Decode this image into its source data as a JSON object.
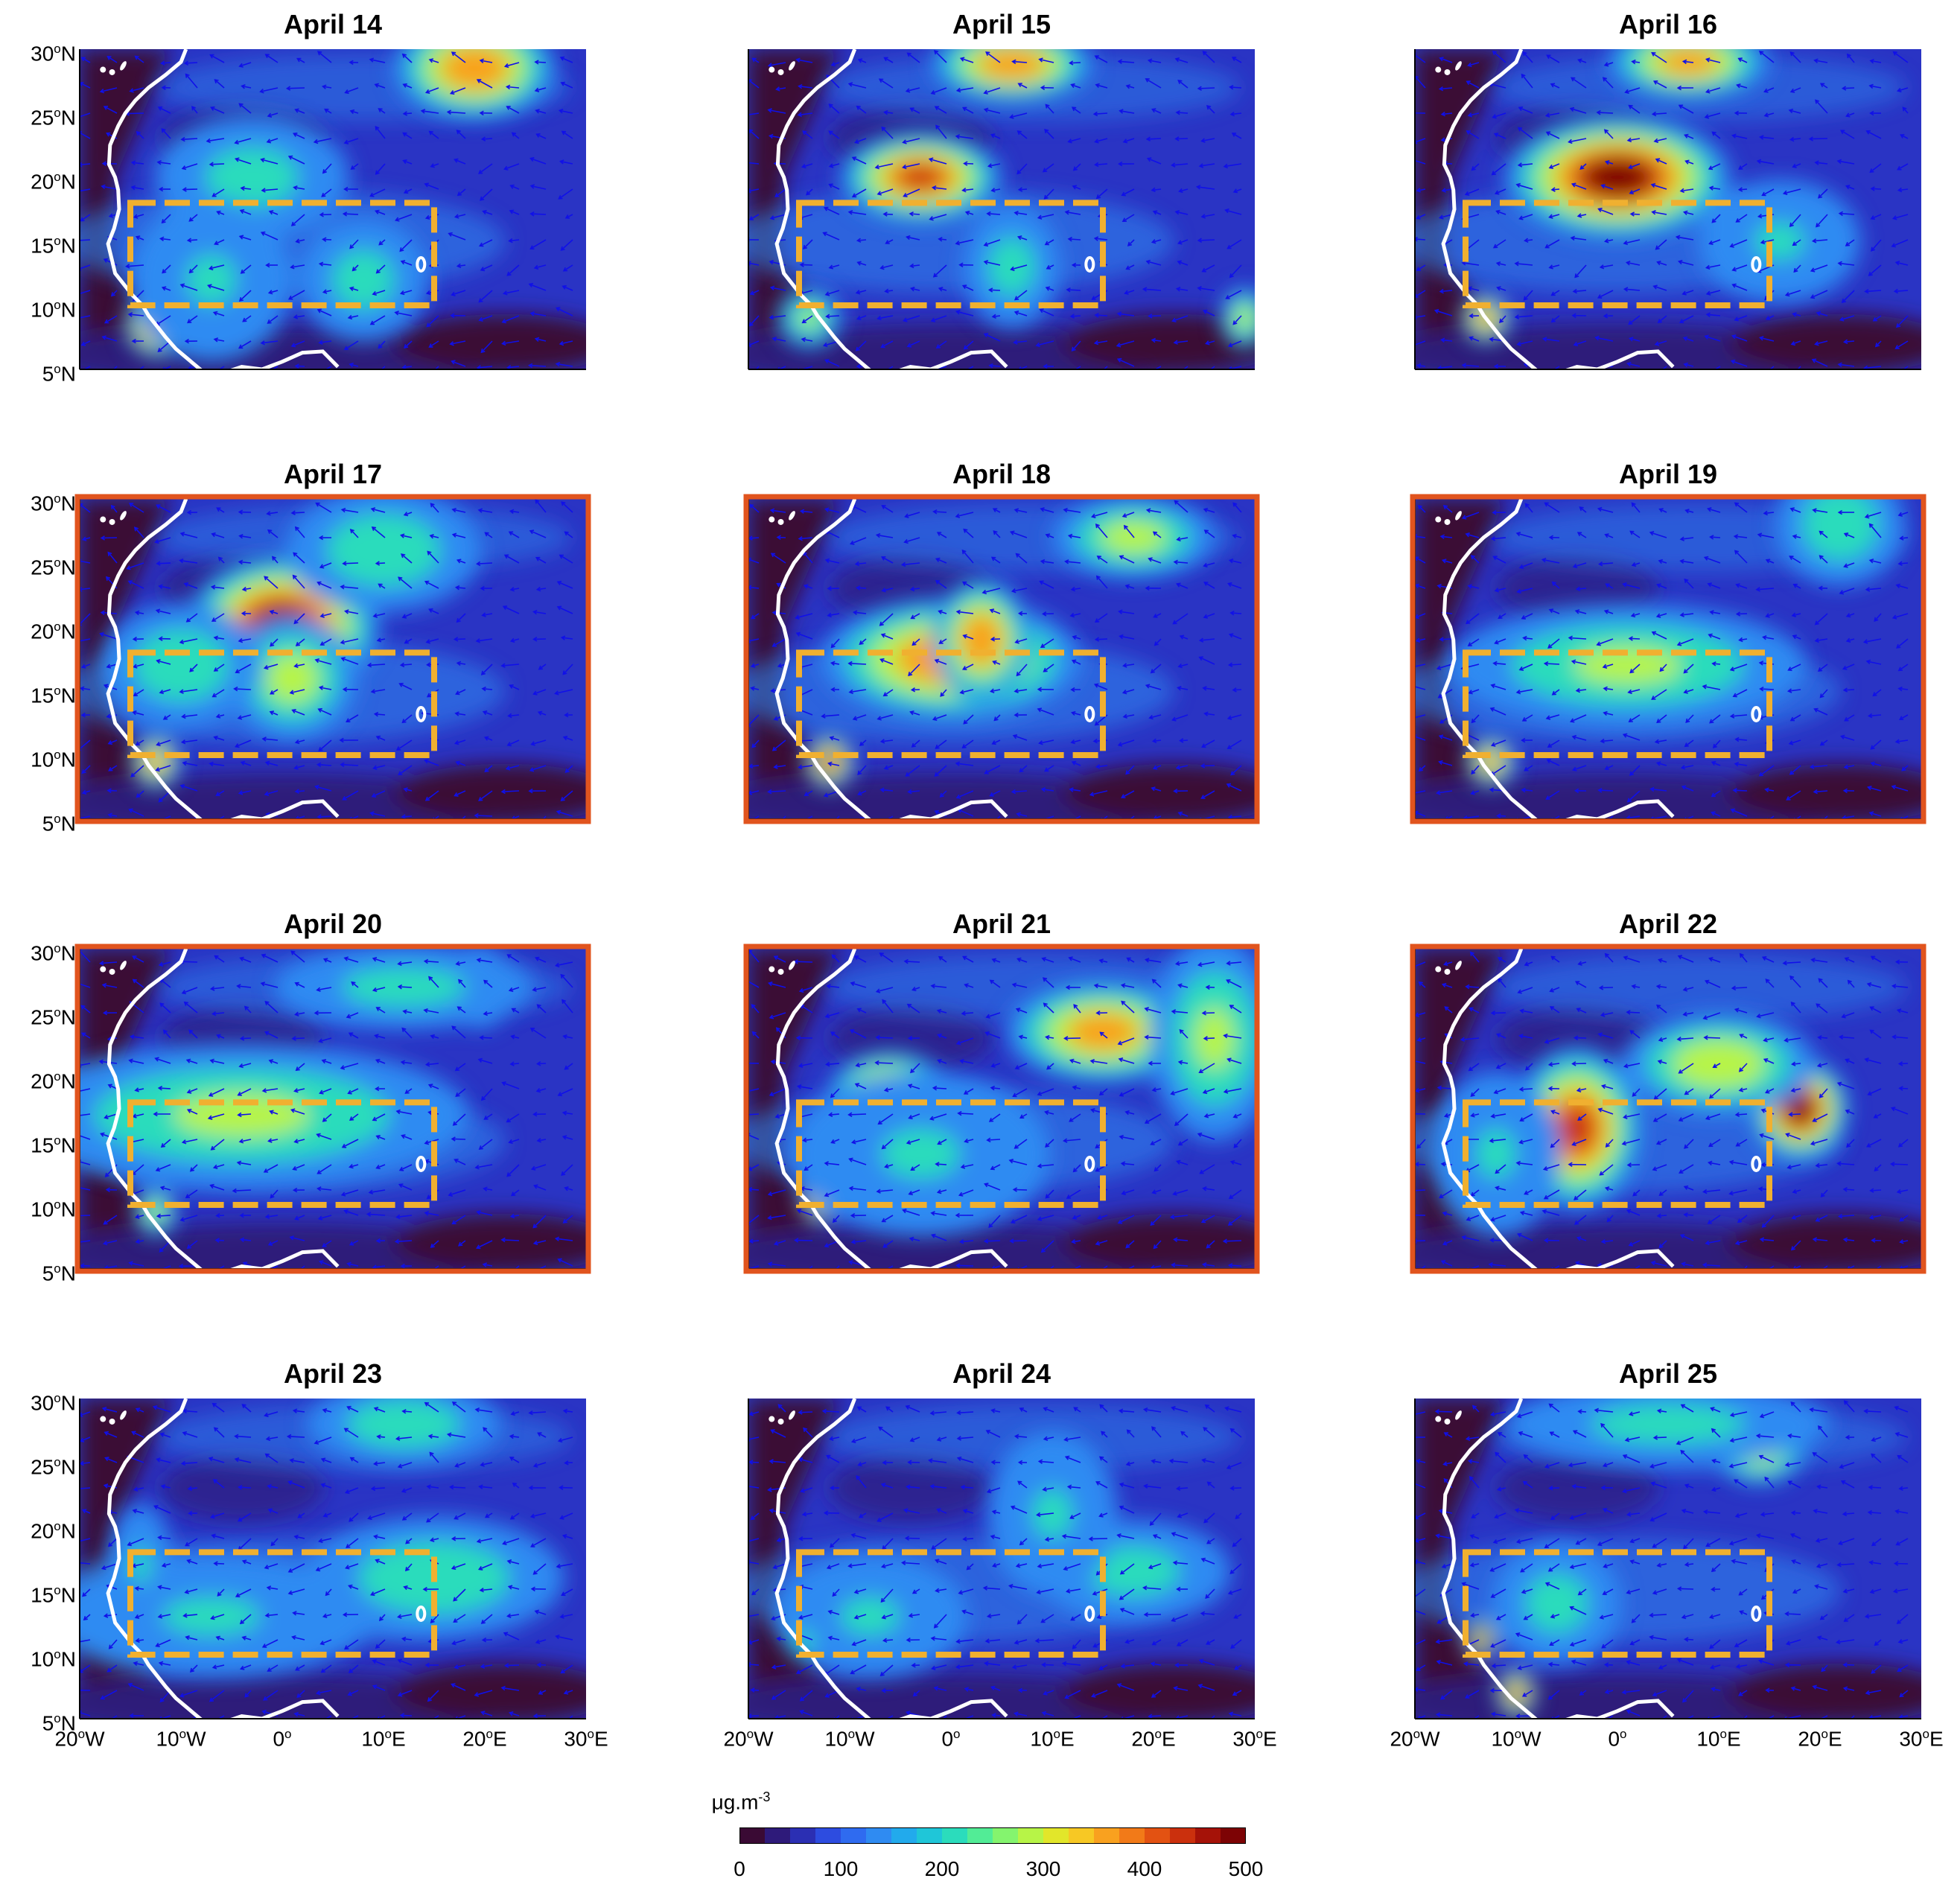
{
  "panels": [
    {
      "title": "April 14",
      "highlighted": false,
      "hotspots": [
        [
          -12.3,
          8.5,
          2,
          1.6,
          1.0
        ],
        [
          19,
          28.5,
          5,
          2.5,
          0.8
        ],
        [
          -3,
          20,
          6,
          3,
          0.45
        ],
        [
          -7,
          12,
          5,
          4,
          0.4
        ],
        [
          8,
          12,
          4,
          3,
          0.45
        ]
      ]
    },
    {
      "title": "April 15",
      "highlighted": false,
      "hotspots": [
        [
          -3,
          20,
          5,
          2.2,
          0.85
        ],
        [
          6,
          28.8,
          5,
          1.8,
          0.8
        ],
        [
          -14,
          9,
          2,
          1.5,
          0.55
        ],
        [
          29,
          9,
          1.5,
          1.5,
          0.6
        ],
        [
          6,
          13,
          3,
          3,
          0.45
        ]
      ]
    },
    {
      "title": "April 16",
      "highlighted": false,
      "hotspots": [
        [
          0,
          20,
          7,
          3,
          0.95
        ],
        [
          7,
          29,
          5,
          1.8,
          0.75
        ],
        [
          -13,
          9,
          1.5,
          1.2,
          0.8
        ],
        [
          16,
          15,
          5,
          3,
          0.4
        ]
      ]
    },
    {
      "title": "April 17",
      "highlighted": true,
      "hotspots": [
        [
          0,
          20,
          6,
          3.5,
          0.95
        ],
        [
          1,
          16,
          4,
          3,
          0.6
        ],
        [
          -12.5,
          9.5,
          1.5,
          1.3,
          0.8
        ],
        [
          10,
          26,
          6,
          3,
          0.5
        ],
        [
          -10,
          17,
          5,
          3,
          0.5
        ]
      ]
    },
    {
      "title": "April 18",
      "highlighted": true,
      "hotspots": [
        [
          0,
          17.5,
          8,
          3,
          0.8
        ],
        [
          -12,
          9.5,
          1.5,
          1.3,
          0.9
        ],
        [
          18,
          27,
          5,
          2,
          0.6
        ],
        [
          3,
          19,
          3,
          3,
          0.8
        ]
      ]
    },
    {
      "title": "April 19",
      "highlighted": true,
      "hotspots": [
        [
          1,
          17,
          11,
          3,
          0.55
        ],
        [
          -12.5,
          9.5,
          1.5,
          1.2,
          0.8
        ],
        [
          22,
          28,
          4,
          3,
          0.5
        ]
      ]
    },
    {
      "title": "April 20",
      "highlighted": true,
      "hotspots": [
        [
          -4,
          17,
          14,
          3.5,
          0.55
        ],
        [
          19.5,
          27,
          2,
          2,
          0.75
        ],
        [
          12,
          27,
          8,
          2,
          0.45
        ],
        [
          -12.5,
          9.5,
          1.3,
          1.2,
          0.6
        ]
      ]
    },
    {
      "title": "April 21",
      "highlighted": true,
      "hotspots": [
        [
          -6,
          18,
          4,
          2.5,
          0.95
        ],
        [
          -13,
          10.5,
          1.2,
          1.2,
          0.95
        ],
        [
          15,
          23.5,
          6,
          2.5,
          0.75
        ],
        [
          26,
          23,
          4,
          5,
          0.55
        ],
        [
          -3,
          14,
          8,
          4,
          0.4
        ]
      ]
    },
    {
      "title": "April 22",
      "highlighted": true,
      "hotspots": [
        [
          -4,
          16,
          4,
          4,
          0.85
        ],
        [
          18,
          17.5,
          3,
          2.5,
          0.95
        ],
        [
          10,
          21,
          6,
          2.5,
          0.65
        ],
        [
          -12,
          14,
          4,
          4,
          0.4
        ]
      ]
    },
    {
      "title": "April 23",
      "highlighted": false,
      "hotspots": [
        [
          15,
          16,
          8,
          3,
          0.5
        ],
        [
          -7,
          13,
          10,
          3,
          0.4
        ],
        [
          12,
          28,
          6,
          2,
          0.5
        ],
        [
          -14,
          17,
          2,
          3,
          0.4
        ]
      ]
    },
    {
      "title": "April 24",
      "highlighted": false,
      "hotspots": [
        [
          18,
          16.5,
          6,
          2.5,
          0.45
        ],
        [
          -8,
          13,
          6,
          3,
          0.4
        ],
        [
          10,
          21,
          4,
          4,
          0.4
        ],
        [
          -14.5,
          11,
          1,
          1,
          0.5
        ]
      ]
    },
    {
      "title": "April 25",
      "highlighted": false,
      "hotspots": [
        [
          14,
          26.5,
          3,
          2,
          0.75
        ],
        [
          5,
          28,
          10,
          2,
          0.45
        ],
        [
          -13.5,
          11.2,
          1,
          1,
          0.95
        ],
        [
          -10,
          7,
          1.2,
          1.2,
          0.85
        ],
        [
          -6,
          14,
          4,
          3,
          0.45
        ]
      ]
    }
  ],
  "axes": {
    "y_ticks": [
      [
        "30",
        "N"
      ],
      [
        "25",
        "N"
      ],
      [
        "20",
        "N"
      ],
      [
        "15",
        "N"
      ],
      [
        "10",
        "N"
      ],
      [
        "5",
        "N"
      ]
    ],
    "x_ticks": [
      [
        "20",
        "W"
      ],
      [
        "10",
        "W"
      ],
      [
        "0",
        ""
      ],
      [
        "10",
        "E"
      ],
      [
        "20",
        "E"
      ],
      [
        "30",
        "E"
      ]
    ]
  },
  "colorbar": {
    "unit_main": "μg.m",
    "unit_exp": "-3",
    "ticks": [
      "0",
      "100",
      "200",
      "300",
      "400",
      "500"
    ],
    "min": 0,
    "max": 500,
    "colors": [
      "#3a0a34",
      "#2e1a7a",
      "#2b2fb3",
      "#2d4ce0",
      "#2f6bf0",
      "#2f8bf2",
      "#22aaec",
      "#1fc6d8",
      "#2bdcbc",
      "#52ec96",
      "#84f46e",
      "#b7f447",
      "#e2e62a",
      "#f7c824",
      "#f9a11f",
      "#f27a18",
      "#e35212",
      "#cb300d",
      "#a51208",
      "#7d0305"
    ]
  },
  "map_extent": {
    "lon": [
      -20,
      30
    ],
    "lat": [
      5,
      30
    ]
  },
  "target_box": {
    "lon": [
      -15,
      15
    ],
    "lat": [
      10,
      18
    ]
  },
  "colors": {
    "highlight_frame": "#e1541e",
    "target_box": "#f0b030",
    "coastline": "#ffffff",
    "wind_vector": "#1010e8",
    "background": "#2a34c4"
  }
}
